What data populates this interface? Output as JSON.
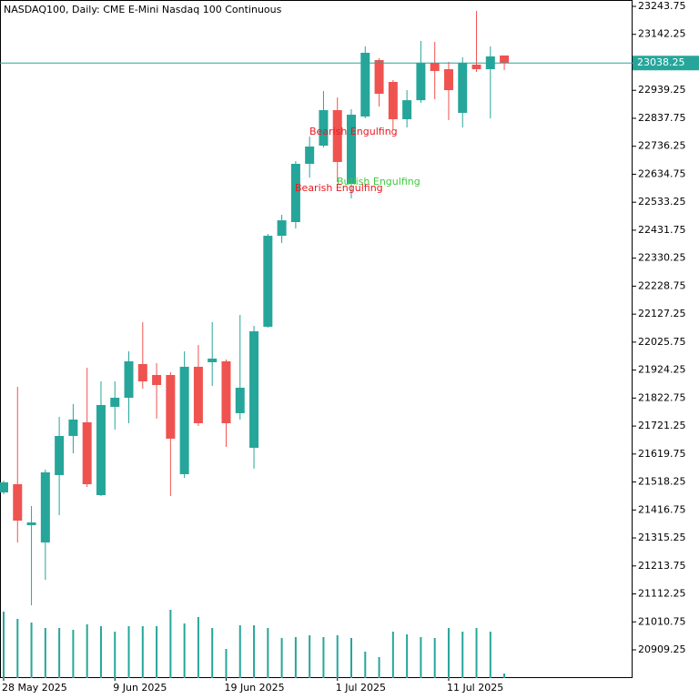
{
  "chart_data": {
    "type": "candlestick",
    "title": "NASDAQ100, Daily:  CME E-Mini Nasdaq 100 Continuous",
    "categories": [
      "28 May 2025",
      null,
      null,
      null,
      null,
      null,
      null,
      null,
      "9 Jun 2025",
      null,
      null,
      null,
      null,
      null,
      null,
      null,
      "19 Jun 2025",
      null,
      null,
      null,
      null,
      null,
      null,
      null,
      "1 Jul 2025",
      null,
      null,
      null,
      null,
      null,
      null,
      null,
      "11 Jul 2025",
      null,
      null,
      null,
      null
    ],
    "open": [
      21480.5,
      21510.2,
      21361.6,
      21298.9,
      21543.3,
      21685.3,
      21734.8,
      21470.6,
      21790.9,
      21823.9,
      21946.1,
      21906.4,
      21906.4,
      21546.6,
      21936.2,
      21952.7,
      21956.0,
      21767.8,
      21642.3,
      22081.5,
      22411.6,
      22461.2,
      22672.5,
      22738.5,
      22867.3,
      22599.9,
      22844.2,
      23048.9,
      22969.7,
      22834.3,
      22903.4,
      23039.0,
      23015.9,
      22857.4,
      23032.4,
      23015.9,
      23065.5
    ],
    "high": [
      21523.4,
      21863.5,
      21431.0,
      21563.1,
      21754.7,
      21800.8,
      21932.9,
      21883.3,
      21883.3,
      21992.3,
      22098.0,
      21949.4,
      21916.3,
      21992.3,
      22015.4,
      22098.0,
      21962.6,
      22124.4,
      22084.8,
      22418.3,
      22487.6,
      22682.4,
      22771.5,
      22936.7,
      22913.6,
      22870.6,
      23098.5,
      23055.5,
      22976.3,
      22939.9,
      23118.3,
      23115.0,
      23042.3,
      23058.8,
      23227.2,
      23098.5,
      23065.5
    ],
    "low": [
      21473.9,
      21298.9,
      21071.0,
      21163.5,
      21397.9,
      21622.5,
      21500.3,
      21467.3,
      21708.4,
      21731.5,
      21857.0,
      21748.0,
      21467.3,
      21533.5,
      21721.6,
      21866.8,
      21645.6,
      21744.7,
      21566.4,
      22078.2,
      22385.2,
      22438.1,
      22623.0,
      22731.9,
      22606.5,
      22547.0,
      22837.6,
      22880.5,
      22794.7,
      22804.6,
      22893.7,
      22906.9,
      22831.0,
      22804.6,
      23006.0,
      22837.6,
      23012.6
    ],
    "close": [
      21516.8,
      21378.1,
      21371.5,
      21553.2,
      21685.3,
      21744.8,
      21510.2,
      21797.5,
      21823.9,
      21956.0,
      21883.3,
      21870.1,
      21675.4,
      21936.2,
      21731.5,
      21965.9,
      21731.5,
      21860.2,
      22065.0,
      22411.6,
      22467.6,
      22672.5,
      22735.2,
      22867.3,
      22679.1,
      22850.8,
      23075.4,
      22926.8,
      22834.3,
      22903.4,
      23039.0,
      23009.3,
      22939.9,
      23039.0,
      23015.9,
      23062.2,
      23038.25
    ],
    "volume": [
      73,
      65,
      61,
      55,
      55,
      53,
      59,
      57,
      51,
      57,
      57,
      57,
      75,
      60,
      67,
      55,
      32,
      58,
      58,
      55,
      44,
      45,
      47,
      45,
      47,
      44,
      29,
      23,
      51,
      48,
      45,
      44,
      55,
      51,
      55,
      51,
      5
    ],
    "up_color": "#26a69a",
    "down_color": "#ef5350",
    "volume_color": "#26a69a",
    "last_price": 23038.25,
    "ylim": [
      20806.9,
      23266.9
    ],
    "yticks": [
      23243.75,
      23142.25,
      22939.25,
      22837.75,
      22736.25,
      22634.75,
      22533.25,
      22431.75,
      22330.25,
      22228.75,
      22127.25,
      22025.75,
      21924.25,
      21822.75,
      21721.25,
      21619.75,
      21518.25,
      21416.75,
      21315.25,
      21213.75,
      21112.25,
      21010.75,
      20909.25
    ],
    "annotations": [
      {
        "text": "Bearish Engulfing",
        "color": "#e8191f"
      },
      {
        "text": "Bullish Engulfing",
        "color": "#3ec93e"
      },
      {
        "text": "Bearish Engulfing",
        "color": "#e8191f"
      }
    ]
  }
}
